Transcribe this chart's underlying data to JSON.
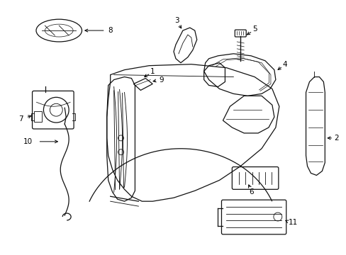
{
  "background_color": "#ffffff",
  "line_color": "#111111",
  "line_width": 0.9,
  "label_fontsize": 7.5,
  "figsize": [
    4.89,
    3.6
  ],
  "dpi": 100
}
